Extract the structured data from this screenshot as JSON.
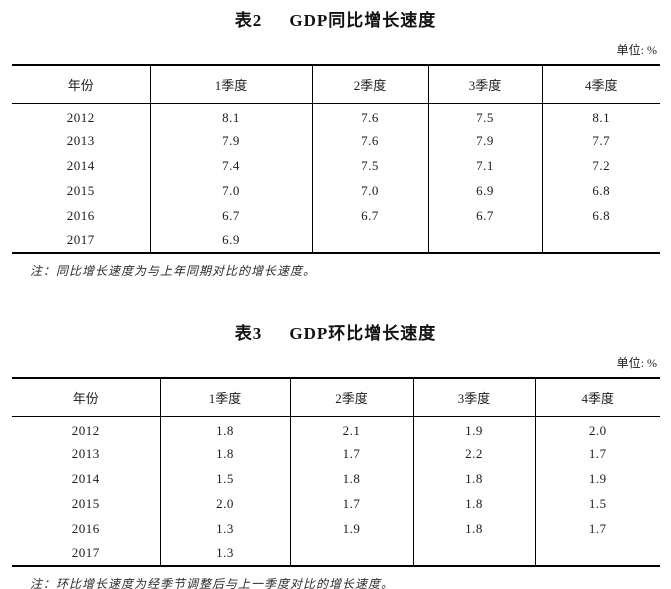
{
  "page": {
    "background": "#ffffff",
    "border_color": "#000000",
    "text_color": "#1c1c1c"
  },
  "tables": [
    {
      "title_no": "表2",
      "title_text": "GDP同比增长速度",
      "unit": "单位: %",
      "columns": [
        "年份",
        "1季度",
        "2季度",
        "3季度",
        "4季度"
      ],
      "rows": [
        [
          "2012",
          "8.1",
          "7.6",
          "7.5",
          "8.1"
        ],
        [
          "2013",
          "7.9",
          "7.6",
          "7.9",
          "7.7"
        ],
        [
          "2014",
          "7.4",
          "7.5",
          "7.1",
          "7.2"
        ],
        [
          "2015",
          "7.0",
          "7.0",
          "6.9",
          "6.8"
        ],
        [
          "2016",
          "6.7",
          "6.7",
          "6.7",
          "6.8"
        ],
        [
          "2017",
          "6.9",
          "",
          "",
          ""
        ]
      ],
      "note": "注：同比增长速度为与上年同期对比的增长速度。"
    },
    {
      "title_no": "表3",
      "title_text": "GDP环比增长速度",
      "unit": "单位: %",
      "columns": [
        "年份",
        "1季度",
        "2季度",
        "3季度",
        "4季度"
      ],
      "rows": [
        [
          "2012",
          "1.8",
          "2.1",
          "1.9",
          "2.0"
        ],
        [
          "2013",
          "1.8",
          "1.7",
          "2.2",
          "1.7"
        ],
        [
          "2014",
          "1.5",
          "1.8",
          "1.8",
          "1.9"
        ],
        [
          "2015",
          "2.0",
          "1.7",
          "1.8",
          "1.5"
        ],
        [
          "2016",
          "1.3",
          "1.9",
          "1.8",
          "1.7"
        ],
        [
          "2017",
          "1.3",
          "",
          "",
          ""
        ]
      ],
      "note": "注：环比增长速度为经季节调整后与上一季度对比的增长速度。"
    }
  ]
}
